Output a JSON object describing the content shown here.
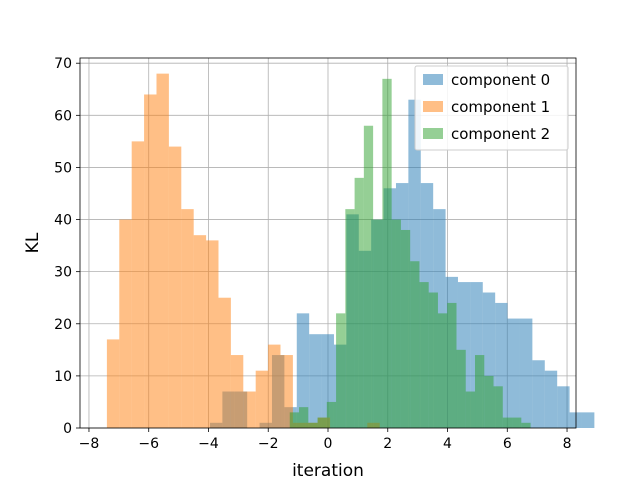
{
  "chart_data": {
    "type": "bar",
    "subtype": "histogram",
    "title": "",
    "xlabel": "iteration",
    "ylabel": "KL",
    "xlim": [
      -8.3,
      8.3
    ],
    "ylim": [
      0,
      71
    ],
    "xticks": [
      -8,
      -6,
      -4,
      -2,
      0,
      2,
      4,
      6,
      8
    ],
    "yticks": [
      0,
      10,
      20,
      30,
      40,
      50,
      60,
      70
    ],
    "xtick_labels": [
      "−8",
      "−6",
      "−4",
      "−2",
      "0",
      "2",
      "4",
      "6",
      "8"
    ],
    "ytick_labels": [
      "0",
      "10",
      "20",
      "30",
      "40",
      "50",
      "60",
      "70"
    ],
    "grid": true,
    "legend_position": "top-right",
    "series": [
      {
        "name": "component 0",
        "color": "#1f77b4",
        "alpha": 0.5,
        "bin_start": -3.95,
        "bin_width": 0.415,
        "counts": [
          1,
          7,
          7,
          0,
          1,
          14,
          4,
          22,
          18,
          18,
          16,
          41,
          34,
          40,
          46,
          47,
          63,
          47,
          42,
          29,
          28,
          28,
          26,
          24,
          21,
          21,
          13,
          11,
          8,
          3,
          3
        ]
      },
      {
        "name": "component 1",
        "color": "#ff7f0e",
        "alpha": 0.5,
        "bin_start": -7.4,
        "bin_width": 0.415,
        "counts": [
          17,
          40,
          55,
          64,
          68,
          54,
          42,
          37,
          36,
          25,
          14,
          7,
          11,
          16,
          14,
          1,
          1,
          2,
          0,
          0,
          0,
          1
        ]
      },
      {
        "name": "component 2",
        "color": "#2ca02c",
        "alpha": 0.5,
        "bin_start": -1.28,
        "bin_width": 0.31,
        "counts": [
          3,
          4,
          1,
          2,
          5,
          22,
          42,
          48,
          58,
          40,
          67,
          40,
          38,
          32,
          28,
          26,
          22,
          24,
          15,
          7,
          14,
          10,
          8,
          2,
          2,
          1
        ]
      }
    ]
  }
}
